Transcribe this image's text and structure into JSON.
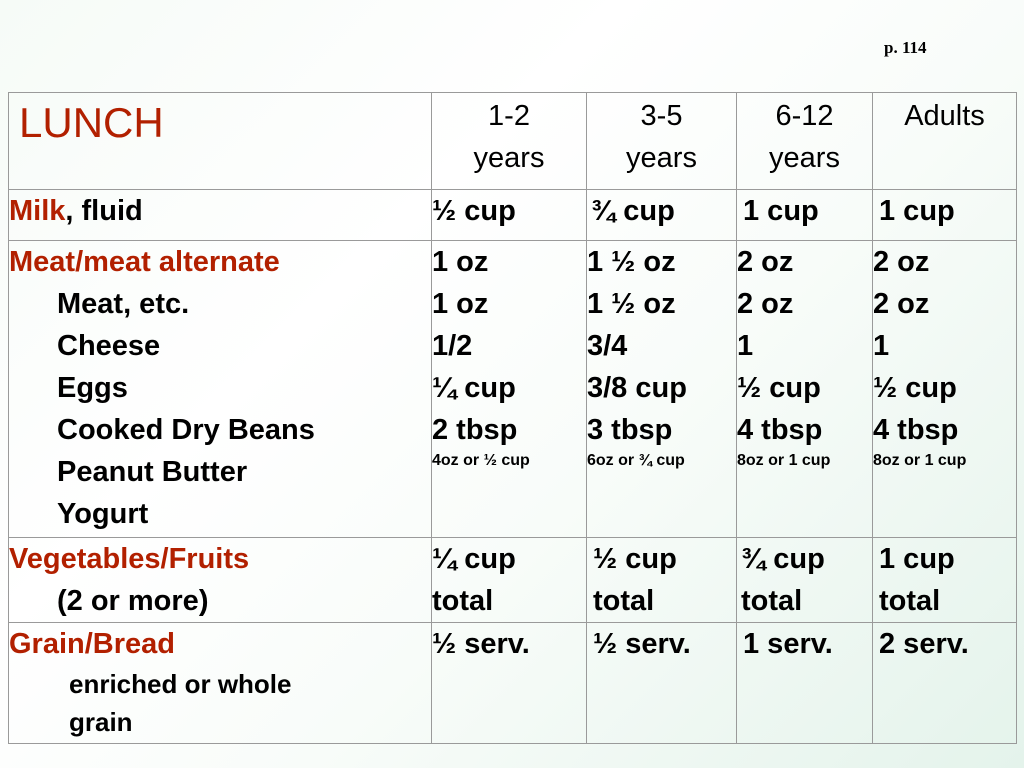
{
  "page_number": "p. 114",
  "header": {
    "title": "LUNCH",
    "ages": [
      [
        "1-2",
        "years"
      ],
      [
        "3-5",
        "years"
      ],
      [
        "6-12",
        "years"
      ],
      [
        "Adults",
        ""
      ]
    ]
  },
  "milk": {
    "label_red": "Milk",
    "label_rest": ", fluid",
    "values": [
      "½ cup",
      "¾ cup",
      "1 cup",
      "1 cup"
    ]
  },
  "meat": {
    "label": "Meat/meat alternate",
    "items": [
      "Meat, etc.",
      "Cheese",
      "Eggs",
      "Cooked Dry Beans",
      "Peanut Butter",
      "Yogurt"
    ],
    "columns": [
      {
        "values": [
          "1 oz",
          "1 oz",
          "1/2",
          "¼ cup",
          "2 tbsp"
        ],
        "yogurt": "4oz or ½ cup"
      },
      {
        "values": [
          "1 ½ oz",
          "1 ½ oz",
          "3/4",
          "3/8 cup",
          "3 tbsp"
        ],
        "yogurt": "6oz or ¾ cup"
      },
      {
        "values": [
          "2 oz",
          "2 oz",
          "1",
          "½ cup",
          "4 tbsp"
        ],
        "yogurt": "8oz or 1 cup"
      },
      {
        "values": [
          "2 oz",
          "2 oz",
          "1",
          "½ cup",
          "4 tbsp"
        ],
        "yogurt": "8oz or 1 cup"
      }
    ]
  },
  "vegetables": {
    "label": "Vegetables/Fruits",
    "sub": "(2 or more)",
    "values": [
      [
        "¼ cup",
        "total"
      ],
      [
        "½ cup",
        "total"
      ],
      [
        "¾ cup",
        "total"
      ],
      [
        "1 cup",
        "total"
      ]
    ]
  },
  "grain": {
    "label": "Grain/Bread",
    "sub": [
      "enriched or whole",
      "grain"
    ],
    "values": [
      "½ serv.",
      "½ serv.",
      "1 serv.",
      "2 serv."
    ]
  },
  "colors": {
    "accent_red": "#b22000",
    "border": "#9a9a9a"
  }
}
